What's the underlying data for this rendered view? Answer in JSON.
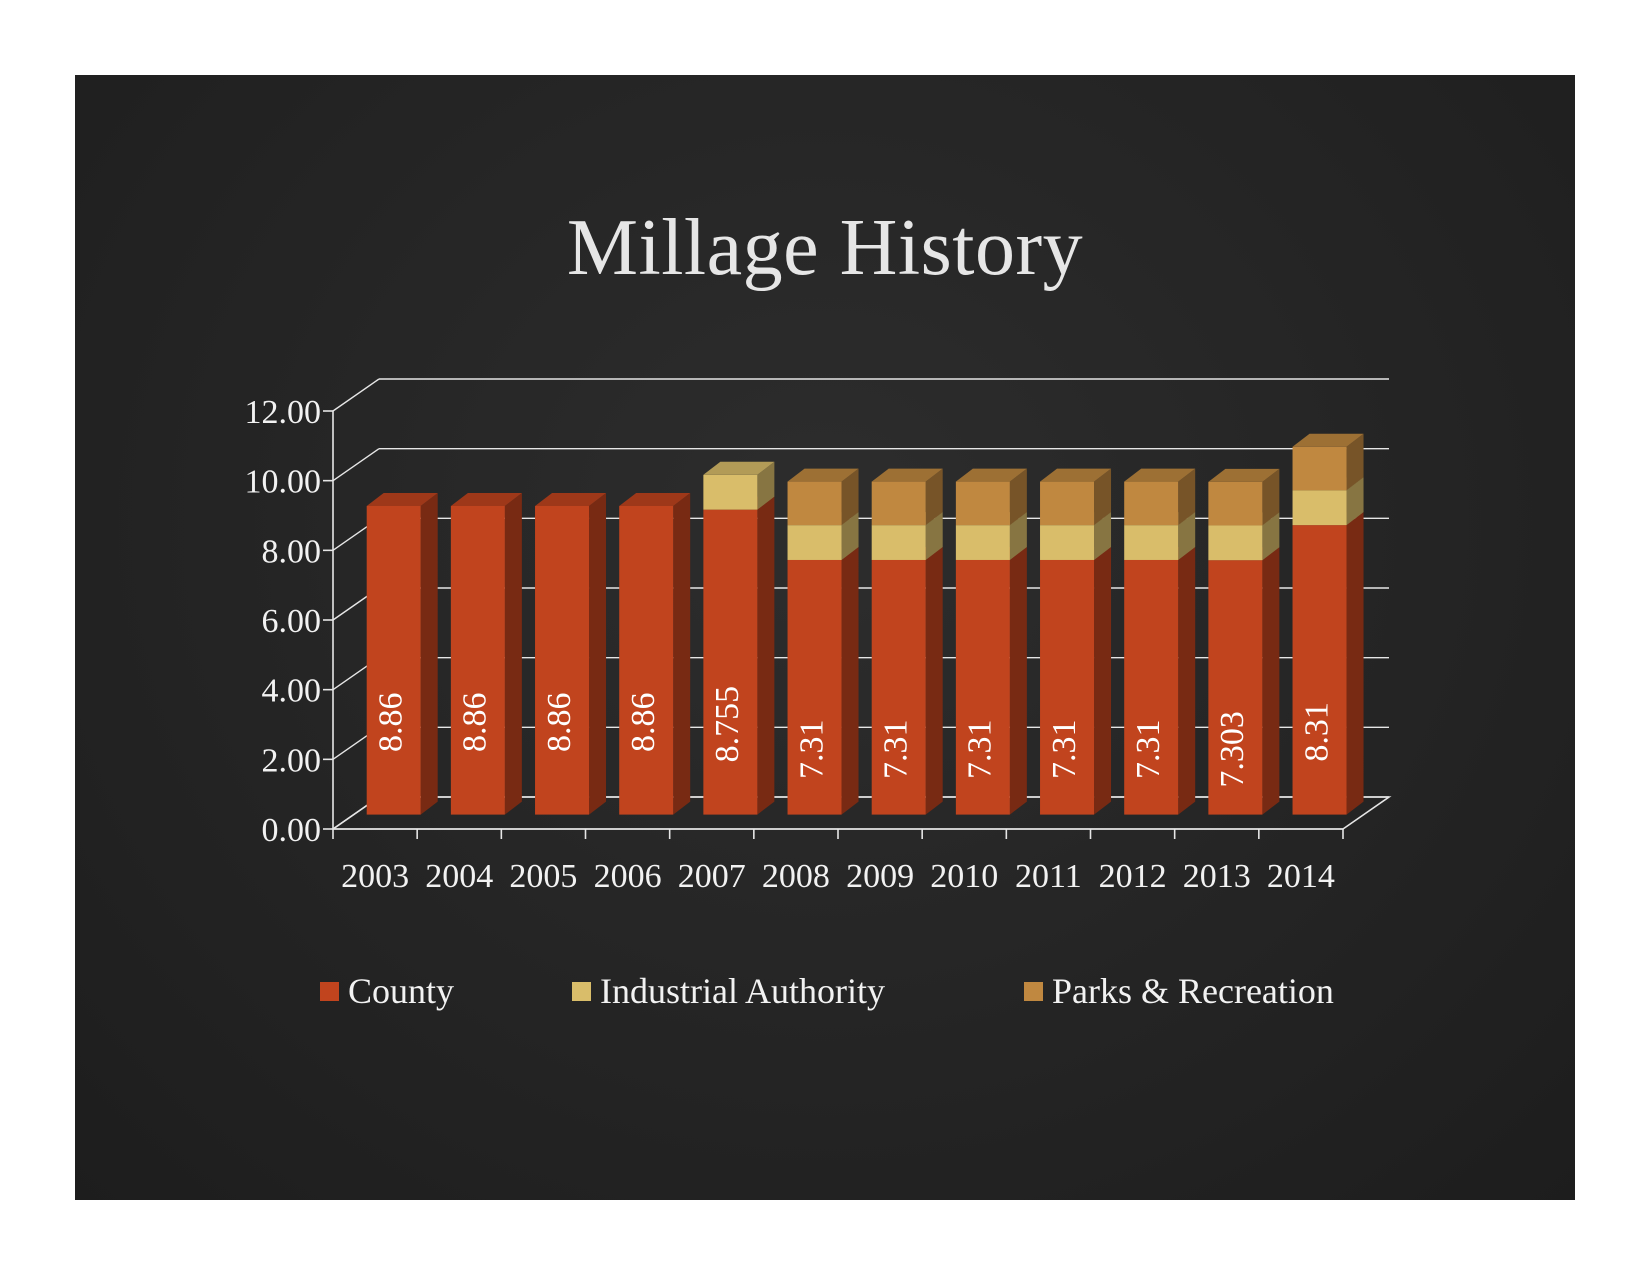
{
  "colors": {
    "background": "#252525",
    "county": "#c1441e",
    "industrial_authority": "#d9bd6a",
    "parks_recreation": "#c08840",
    "text": "#f2f2f2",
    "grid": "#e6e6e6"
  },
  "chart_data": {
    "type": "bar",
    "stacked": true,
    "three_d": true,
    "title": "Millage History",
    "xlabel": "",
    "ylabel": "",
    "ylim": [
      0,
      12
    ],
    "y_ticks": [
      "0.00",
      "2.00",
      "4.00",
      "6.00",
      "8.00",
      "10.00",
      "12.00"
    ],
    "grid": true,
    "legend_position": "bottom",
    "categories": [
      "2003",
      "2004",
      "2005",
      "2006",
      "2007",
      "2008",
      "2009",
      "2010",
      "2011",
      "2012",
      "2013",
      "2014"
    ],
    "series": [
      {
        "name": "County",
        "color": "#c1441e",
        "values": [
          8.86,
          8.86,
          8.86,
          8.86,
          8.755,
          7.31,
          7.31,
          7.31,
          7.31,
          7.31,
          7.303,
          8.31
        ],
        "data_labels": [
          "8.86",
          "8.86",
          "8.86",
          "8.86",
          "8.755",
          "7.31",
          "7.31",
          "7.31",
          "7.31",
          "7.31",
          "7.303",
          "8.31"
        ]
      },
      {
        "name": "Industrial Authority",
        "color": "#d9bd6a",
        "values": [
          0,
          0,
          0,
          0,
          1.0,
          1.0,
          1.0,
          1.0,
          1.0,
          1.0,
          1.0,
          1.0
        ]
      },
      {
        "name": "Parks & Recreation",
        "color": "#c08840",
        "values": [
          0,
          0,
          0,
          0,
          0,
          1.25,
          1.25,
          1.25,
          1.25,
          1.25,
          1.25,
          1.25
        ]
      }
    ]
  }
}
